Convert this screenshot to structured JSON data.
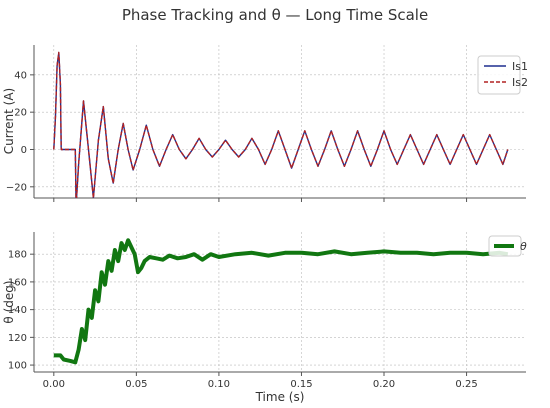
{
  "figure": {
    "title": "Phase Tracking and θ — Long Time Scale"
  },
  "chart_data": [
    {
      "type": "line",
      "xlabel": "",
      "ylabel": "Current (A)",
      "xlim": [
        -0.012,
        0.286
      ],
      "ylim": [
        -26,
        56
      ],
      "x_ticks": [
        0.0,
        0.05,
        0.1,
        0.15,
        0.2,
        0.25
      ],
      "y_ticks": [
        -20,
        0,
        20,
        40
      ],
      "y_tick_labels": [
        "−20",
        "0",
        "20",
        "40"
      ],
      "grid": true,
      "legend_position": "top-right",
      "series": [
        {
          "name": "Is1",
          "color": "#1f2f8f",
          "style": "solid",
          "x": [
            0.0,
            0.001,
            0.002,
            0.003,
            0.004,
            0.0045,
            0.013,
            0.0135,
            0.015,
            0.018,
            0.021,
            0.024,
            0.027,
            0.03,
            0.033,
            0.036,
            0.039,
            0.042,
            0.045,
            0.048,
            0.052,
            0.056,
            0.06,
            0.064,
            0.068,
            0.072,
            0.076,
            0.08,
            0.084,
            0.088,
            0.092,
            0.096,
            0.1,
            0.104,
            0.108,
            0.112,
            0.116,
            0.12,
            0.124,
            0.128,
            0.132,
            0.136,
            0.14,
            0.144,
            0.148,
            0.152,
            0.156,
            0.16,
            0.164,
            0.168,
            0.172,
            0.176,
            0.18,
            0.184,
            0.188,
            0.192,
            0.196,
            0.2,
            0.204,
            0.208,
            0.212,
            0.216,
            0.22,
            0.224,
            0.228,
            0.232,
            0.236,
            0.24,
            0.244,
            0.248,
            0.252,
            0.256,
            0.26,
            0.264,
            0.268,
            0.272,
            0.275
          ],
          "values": [
            0,
            18,
            45,
            52,
            35,
            0,
            0,
            -30,
            -8,
            26,
            0,
            -26,
            5,
            23,
            -5,
            -18,
            0,
            14,
            0,
            -11,
            0,
            13,
            0,
            -9,
            0,
            8,
            0,
            -5,
            0,
            6,
            0,
            -4,
            0,
            5,
            0,
            -4,
            0,
            6,
            0,
            -8,
            0,
            10,
            0,
            -10,
            0,
            10,
            0,
            -9,
            0,
            10,
            0,
            -9,
            0,
            10,
            0,
            -9,
            0,
            10,
            0,
            -8,
            0,
            8,
            0,
            -8,
            0,
            8,
            0,
            -8,
            0,
            8,
            0,
            -8,
            0,
            8,
            0,
            -8,
            0
          ]
        },
        {
          "name": "Is2",
          "color": "#b22222",
          "style": "dashed",
          "x": [
            0.0,
            0.001,
            0.002,
            0.003,
            0.004,
            0.0045,
            0.013,
            0.0135,
            0.015,
            0.018,
            0.021,
            0.024,
            0.027,
            0.03,
            0.033,
            0.036,
            0.039,
            0.042,
            0.045,
            0.048,
            0.052,
            0.056,
            0.06,
            0.064,
            0.068,
            0.072,
            0.076,
            0.08,
            0.084,
            0.088,
            0.092,
            0.096,
            0.1,
            0.104,
            0.108,
            0.112,
            0.116,
            0.12,
            0.124,
            0.128,
            0.132,
            0.136,
            0.14,
            0.144,
            0.148,
            0.152,
            0.156,
            0.16,
            0.164,
            0.168,
            0.172,
            0.176,
            0.18,
            0.184,
            0.188,
            0.192,
            0.196,
            0.2,
            0.204,
            0.208,
            0.212,
            0.216,
            0.22,
            0.224,
            0.228,
            0.232,
            0.236,
            0.24,
            0.244,
            0.248,
            0.252,
            0.256,
            0.26,
            0.264,
            0.268,
            0.272,
            0.275
          ],
          "values": [
            0,
            18,
            45,
            52,
            35,
            0,
            0,
            -30,
            -8,
            26,
            0,
            -26,
            5,
            23,
            -5,
            -18,
            0,
            14,
            0,
            -11,
            0,
            13,
            0,
            -9,
            0,
            8,
            0,
            -5,
            0,
            6,
            0,
            -4,
            0,
            5,
            0,
            -4,
            0,
            6,
            0,
            -8,
            0,
            10,
            0,
            -10,
            0,
            10,
            0,
            -9,
            0,
            10,
            0,
            -9,
            0,
            10,
            0,
            -9,
            0,
            10,
            0,
            -8,
            0,
            8,
            0,
            -8,
            0,
            8,
            0,
            -8,
            0,
            8,
            0,
            -8,
            0,
            8,
            0,
            -8,
            0
          ]
        }
      ]
    },
    {
      "type": "line",
      "xlabel": "Time (s)",
      "ylabel": "θ (deg)",
      "xlim": [
        -0.012,
        0.286
      ],
      "ylim": [
        95,
        196
      ],
      "x_ticks": [
        0.0,
        0.05,
        0.1,
        0.15,
        0.2,
        0.25
      ],
      "x_tick_labels": [
        "0.00",
        "0.05",
        "0.10",
        "0.15",
        "0.20",
        "0.25"
      ],
      "y_ticks": [
        100,
        120,
        140,
        160,
        180
      ],
      "grid": true,
      "legend_position": "top-right",
      "series": [
        {
          "name": "θ",
          "color": "#117711",
          "style": "solid-thick",
          "x": [
            0.0,
            0.004,
            0.006,
            0.01,
            0.013,
            0.015,
            0.017,
            0.019,
            0.021,
            0.023,
            0.025,
            0.027,
            0.029,
            0.031,
            0.033,
            0.035,
            0.037,
            0.039,
            0.041,
            0.043,
            0.045,
            0.047,
            0.049,
            0.051,
            0.053,
            0.055,
            0.058,
            0.062,
            0.066,
            0.07,
            0.075,
            0.08,
            0.085,
            0.09,
            0.095,
            0.1,
            0.11,
            0.12,
            0.13,
            0.14,
            0.15,
            0.16,
            0.17,
            0.18,
            0.19,
            0.2,
            0.21,
            0.22,
            0.23,
            0.24,
            0.25,
            0.26,
            0.27,
            0.275
          ],
          "values": [
            107,
            107,
            104,
            103,
            102,
            111,
            126,
            118,
            140,
            134,
            154,
            146,
            167,
            158,
            175,
            168,
            183,
            175,
            188,
            183,
            190,
            185,
            180,
            167,
            170,
            175,
            178,
            177,
            176,
            179,
            177,
            178,
            180,
            176,
            180,
            178,
            180,
            181,
            179,
            181,
            181,
            180,
            182,
            180,
            181,
            182,
            181,
            181,
            180,
            181,
            181,
            180,
            181,
            180
          ]
        }
      ]
    }
  ]
}
